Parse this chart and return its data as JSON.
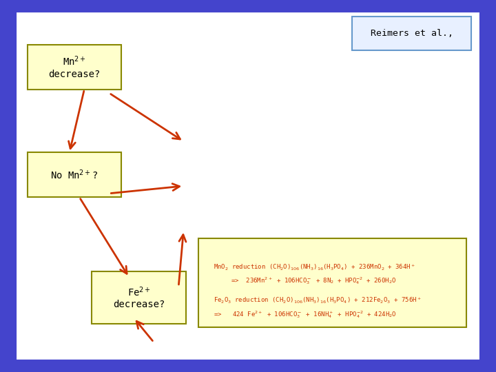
{
  "bg_outer": "#4444cc",
  "bg_inner": "#ffffff",
  "arrow_color": "#cc3300",
  "box_face": "#ffffcc",
  "box_edge": "#888800",
  "reimers_box_edge": "#6699cc",
  "reimers_box_face": "#e8f0ff",
  "text_color_black": "#000000",
  "text_color_mn": "#cc3300",
  "text_color_fe": "#cc3300",
  "box1_label": "Mn$^{2+}$\ndecrease?",
  "box2_label": "No Mn$^{2+}$?",
  "box3_label": "Fe$^{2+}$\ndecrease?",
  "reimers_label": "Reimers et al.,",
  "equation_line1a": "MnO$_2$ reduction (CH$_2$O)$_{106}$(NH$_3$)$_{16}$(H$_3$PO$_4$) + 236MnO$_2$ + 364H$^+$",
  "equation_line1b": "=>  236Mn$^{2+}$ + 106HCO$_3^-$ + 8N$_2$ + HPO$_4^{-2}$ + 260H$_2$O",
  "equation_line2a": "Fe$_2$O$_3$ reduction (CH$_2$O)$_{106}$(NH$_3$)$_{16}$(H$_3$PO$_4$) + 212Fe$_2$O$_3$ + 756H$^+$",
  "equation_line2b": "=>   424 Fe$^{2+}$ + 106HCO$_3^-$ + 16NH$_4^+$ + HPO$_4^{-2}$ + 424H$_2$O"
}
